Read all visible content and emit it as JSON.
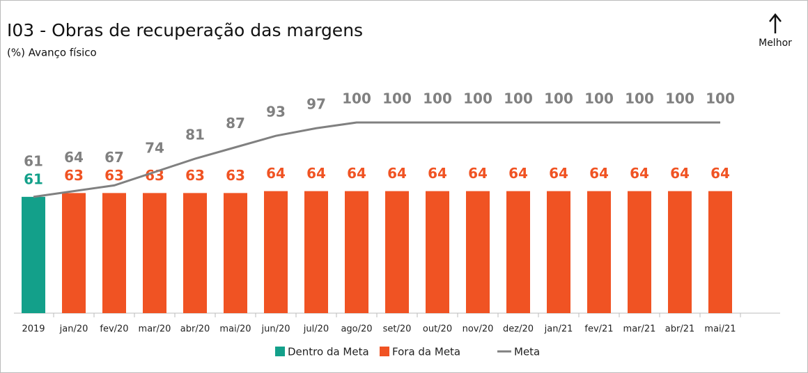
{
  "chart_data": {
    "type": "bar_line",
    "title": "I03 - Obras de recuperação das margens",
    "subtitle": "(%) Avanço físico",
    "annotation": "Melhor",
    "categories": [
      "2019",
      "jan/20",
      "fev/20",
      "mar/20",
      "abr/20",
      "mai/20",
      "jun/20",
      "jul/20",
      "ago/20",
      "set/20",
      "out/20",
      "nov/20",
      "dez/20",
      "jan/21",
      "fev/21",
      "mar/21",
      "abr/21",
      "mai/21"
    ],
    "series": [
      {
        "name": "Dentro da Meta",
        "type": "bar",
        "color": "#13a08a",
        "values": [
          61,
          null,
          null,
          null,
          null,
          null,
          null,
          null,
          null,
          null,
          null,
          null,
          null,
          null,
          null,
          null,
          null,
          null
        ]
      },
      {
        "name": "Fora da Meta",
        "type": "bar",
        "color": "#f05323",
        "values": [
          null,
          63,
          63,
          63,
          63,
          63,
          64,
          64,
          64,
          64,
          64,
          64,
          64,
          64,
          64,
          64,
          64,
          64
        ]
      },
      {
        "name": "Meta",
        "type": "line",
        "color": "#808080",
        "values": [
          61,
          64,
          67,
          74,
          81,
          87,
          93,
          97,
          100,
          100,
          100,
          100,
          100,
          100,
          100,
          100,
          100,
          100
        ]
      }
    ],
    "legend": "bottom"
  }
}
